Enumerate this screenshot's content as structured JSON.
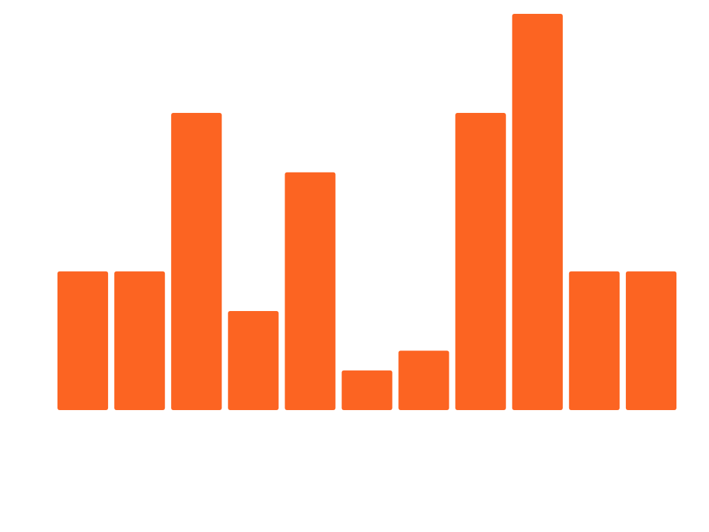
{
  "chart_data": {
    "type": "bar",
    "categories": [
      "",
      "",
      "",
      "",
      "",
      "",
      "",
      "",
      "",
      "",
      ""
    ],
    "values": [
      7,
      7,
      15,
      5,
      12,
      2,
      3,
      15,
      20,
      7,
      7
    ],
    "title": "",
    "xlabel": "",
    "ylabel": "",
    "ylim": [
      0,
      20
    ],
    "grid": false,
    "legend": "none",
    "bar_color": "#FC6422"
  }
}
